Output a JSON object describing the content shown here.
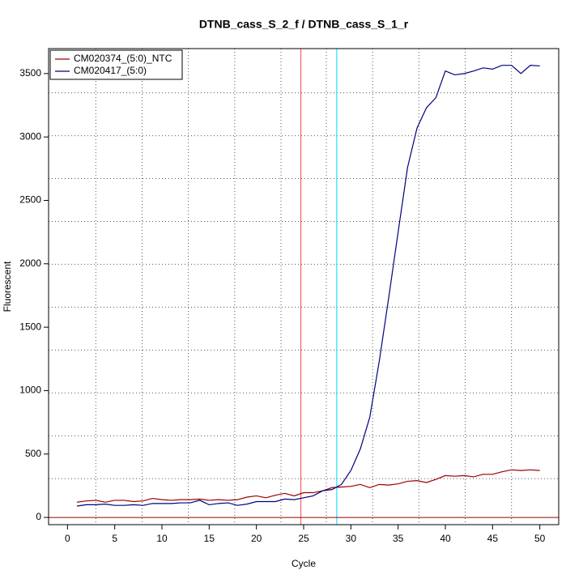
{
  "chart_data": {
    "type": "line",
    "title": "DTNB_cass_S_2_f / DTNB_cass_S_1_r",
    "xlabel": "Cycle",
    "ylabel": "Fluorescent",
    "x": [
      1,
      2,
      3,
      4,
      5,
      6,
      7,
      8,
      9,
      10,
      11,
      12,
      13,
      14,
      15,
      16,
      17,
      18,
      19,
      20,
      21,
      22,
      23,
      24,
      25,
      26,
      27,
      28,
      29,
      30,
      31,
      32,
      33,
      34,
      35,
      36,
      37,
      38,
      39,
      40,
      41,
      42,
      43,
      44,
      45,
      46,
      47,
      48,
      49,
      50
    ],
    "series": [
      {
        "name": "CM020374_(5:0)_NTC",
        "color": "#990000",
        "values": [
          120,
          130,
          135,
          120,
          135,
          135,
          125,
          130,
          150,
          140,
          135,
          140,
          140,
          145,
          135,
          140,
          135,
          140,
          160,
          170,
          155,
          175,
          190,
          170,
          195,
          195,
          210,
          235,
          240,
          245,
          260,
          235,
          260,
          255,
          265,
          285,
          290,
          275,
          300,
          330,
          325,
          330,
          320,
          340,
          340,
          360,
          375,
          370,
          375,
          370
        ]
      },
      {
        "name": "CM020417_(5:0)",
        "color": "#000080",
        "values": [
          90,
          100,
          100,
          105,
          95,
          95,
          100,
          95,
          110,
          110,
          110,
          115,
          115,
          135,
          100,
          110,
          115,
          95,
          105,
          125,
          125,
          125,
          145,
          140,
          155,
          170,
          210,
          220,
          260,
          370,
          540,
          790,
          1230,
          1730,
          2250,
          2760,
          3070,
          3230,
          3310,
          3520,
          3490,
          3500,
          3520,
          3545,
          3535,
          3565,
          3565,
          3500,
          3565,
          3560
        ]
      }
    ],
    "xlim": [
      -2,
      52
    ],
    "ylim": [
      -57,
      3697
    ],
    "xticks": [
      0,
      5,
      10,
      15,
      20,
      25,
      30,
      35,
      40,
      45,
      50
    ],
    "yticks": [
      0,
      500,
      1000,
      1500,
      2000,
      2500,
      3000,
      3500
    ],
    "xgrid": [
      3,
      7.9,
      12.8,
      17.7,
      22.6,
      27.4,
      32.3,
      37.2,
      42.1,
      47
    ],
    "ygrid": [
      306,
      644,
      982,
      1320,
      1658,
      1996,
      2334,
      2672,
      3010,
      3348
    ],
    "vlines": [
      {
        "value": 24.7,
        "color": "#ff6666"
      },
      {
        "value": 28.5,
        "color": "#33e6ff"
      }
    ],
    "hline": {
      "value": 0,
      "color": "#990000"
    },
    "grid": true,
    "legend": "top-left"
  }
}
